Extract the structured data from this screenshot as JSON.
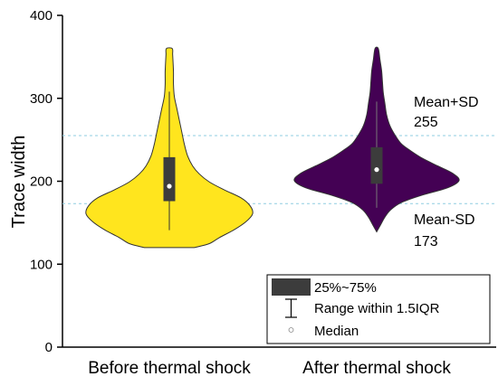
{
  "chart_data": {
    "type": "violin",
    "ylabel": "Trace width",
    "ylim": [
      0,
      400
    ],
    "yticks": [
      0,
      100,
      200,
      300,
      400
    ],
    "categories": [
      "Before thermal shock",
      "After thermal shock"
    ],
    "series": [
      {
        "category": "Before thermal shock",
        "color": "#ffe51e",
        "min": 120,
        "max": 360,
        "q1": 176,
        "q3": 229,
        "median": 194,
        "whisker_low": 141,
        "whisker_high": 308
      },
      {
        "category": "After thermal shock",
        "color": "#440154",
        "min": 139,
        "max": 360,
        "q1": 197,
        "q3": 241,
        "median": 214,
        "whisker_low": 168,
        "whisker_high": 296
      }
    ],
    "reference_lines": [
      {
        "label": "Mean+SD",
        "value": 255,
        "value_text": "255"
      },
      {
        "label": "Mean-SD",
        "value": 173,
        "value_text": "173"
      }
    ],
    "grid": false,
    "legend": {
      "position": "bottom-right",
      "entries": [
        {
          "label": "25%~75%",
          "symbol": "box"
        },
        {
          "label": "Range within 1.5IQR",
          "symbol": "whisker"
        },
        {
          "label": "Median",
          "symbol": "circle"
        }
      ]
    }
  }
}
